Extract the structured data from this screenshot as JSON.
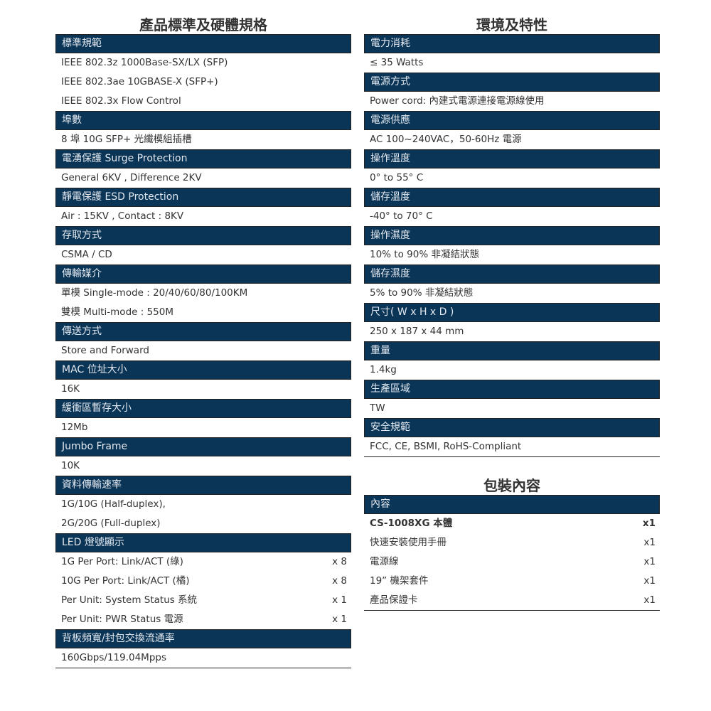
{
  "left": {
    "title": "產品標準及硬體規格",
    "sections": [
      {
        "header": "標準規範",
        "rows": [
          {
            "text": "IEEE 802.3z 1000Base-SX/LX (SFP)"
          },
          {
            "text": "IEEE 802.3ae 10GBASE-X (SFP+)"
          },
          {
            "text": "IEEE 802.3x Flow Control"
          }
        ]
      },
      {
        "header": "埠數",
        "rows": [
          {
            "text": "8 埠 10G SFP+ 光纖模組插槽"
          }
        ]
      },
      {
        "header": "電湧保護 Surge Protection",
        "rows": [
          {
            "text": "General 6KV , Difference 2KV"
          }
        ]
      },
      {
        "header": "靜電保護 ESD Protection",
        "rows": [
          {
            "text": "Air : 15KV , Contact : 8KV"
          }
        ]
      },
      {
        "header": "存取方式",
        "rows": [
          {
            "text": "CSMA / CD"
          }
        ]
      },
      {
        "header": "傳輸媒介",
        "rows": [
          {
            "text": "單模 Single-mode : 20/40/60/80/100KM"
          },
          {
            "text": "雙模 Multi-mode : 550M"
          }
        ]
      },
      {
        "header": "傳送方式",
        "rows": [
          {
            "text": "Store and Forward"
          }
        ]
      },
      {
        "header": "MAC 位址大小",
        "rows": [
          {
            "text": "16K"
          }
        ]
      },
      {
        "header": "緩衝區暫存大小",
        "rows": [
          {
            "text": "12Mb"
          }
        ]
      },
      {
        "header": "Jumbo Frame",
        "rows": [
          {
            "text": "10K"
          }
        ]
      },
      {
        "header": "資料傳輸速率",
        "rows": [
          {
            "text": "1G/10G (Half-duplex),"
          },
          {
            "text": "2G/20G (Full-duplex)"
          }
        ]
      },
      {
        "header": "LED 燈號顯示",
        "rows": [
          {
            "text": "1G Per Port: Link/ACT (綠)",
            "qty": "x 8"
          },
          {
            "text": "10G Per Port: Link/ACT (橘)",
            "qty": "x 8"
          },
          {
            "text": "Per Unit: System Status 系統",
            "qty": "x 1"
          },
          {
            "text": "Per Unit: PWR Status 電源",
            "qty": "x 1"
          }
        ]
      },
      {
        "header": "背板頻寬/封包交換流通率",
        "rows": [
          {
            "text": "160Gbps/119.04Mpps"
          }
        ]
      }
    ]
  },
  "right": {
    "title": "環境及特性",
    "sections": [
      {
        "header": "電力消耗",
        "rows": [
          {
            "text": "≤ 35 Watts"
          }
        ]
      },
      {
        "header": "電源方式",
        "rows": [
          {
            "text": "Power cord: 內建式電源連接電源線使用"
          }
        ]
      },
      {
        "header": "電源供應",
        "rows": [
          {
            "text": "AC 100~240VAC，50-60Hz 電源"
          }
        ]
      },
      {
        "header": "操作溫度",
        "rows": [
          {
            "text": "0° to 55° C"
          }
        ]
      },
      {
        "header": "儲存溫度",
        "rows": [
          {
            "text": "-40° to 70° C"
          }
        ]
      },
      {
        "header": "操作濕度",
        "rows": [
          {
            "text": "10% to 90% 非凝結狀態"
          }
        ]
      },
      {
        "header": "儲存濕度",
        "rows": [
          {
            "text": "5% to 90% 非凝結狀態"
          }
        ]
      },
      {
        "header": "尺寸( W x H x D )",
        "rows": [
          {
            "text": "250 x 187 x 44 mm"
          }
        ]
      },
      {
        "header": "重量",
        "rows": [
          {
            "text": "1.4kg"
          }
        ]
      },
      {
        "header": "生產區域",
        "rows": [
          {
            "text": "TW"
          }
        ]
      },
      {
        "header": "安全規範",
        "rows": [
          {
            "text": "FCC, CE, BSMI, RoHS-Compliant"
          }
        ]
      }
    ]
  },
  "package": {
    "title": "包裝內容",
    "sections": [
      {
        "header": "內容",
        "rows": [
          {
            "text": "CS-1008XG 本體",
            "qty": "x1",
            "bold": true
          },
          {
            "text": "快速安裝使用手冊",
            "qty": "x1"
          },
          {
            "text": "電源線",
            "qty": "x1"
          },
          {
            "text": "19” 機架套件",
            "qty": "x1"
          },
          {
            "text": "產品保證卡",
            "qty": "x1"
          }
        ]
      }
    ]
  },
  "colors": {
    "header_bg": "#0b3557",
    "header_text": "#e2e8ef",
    "body_text": "#333333"
  }
}
